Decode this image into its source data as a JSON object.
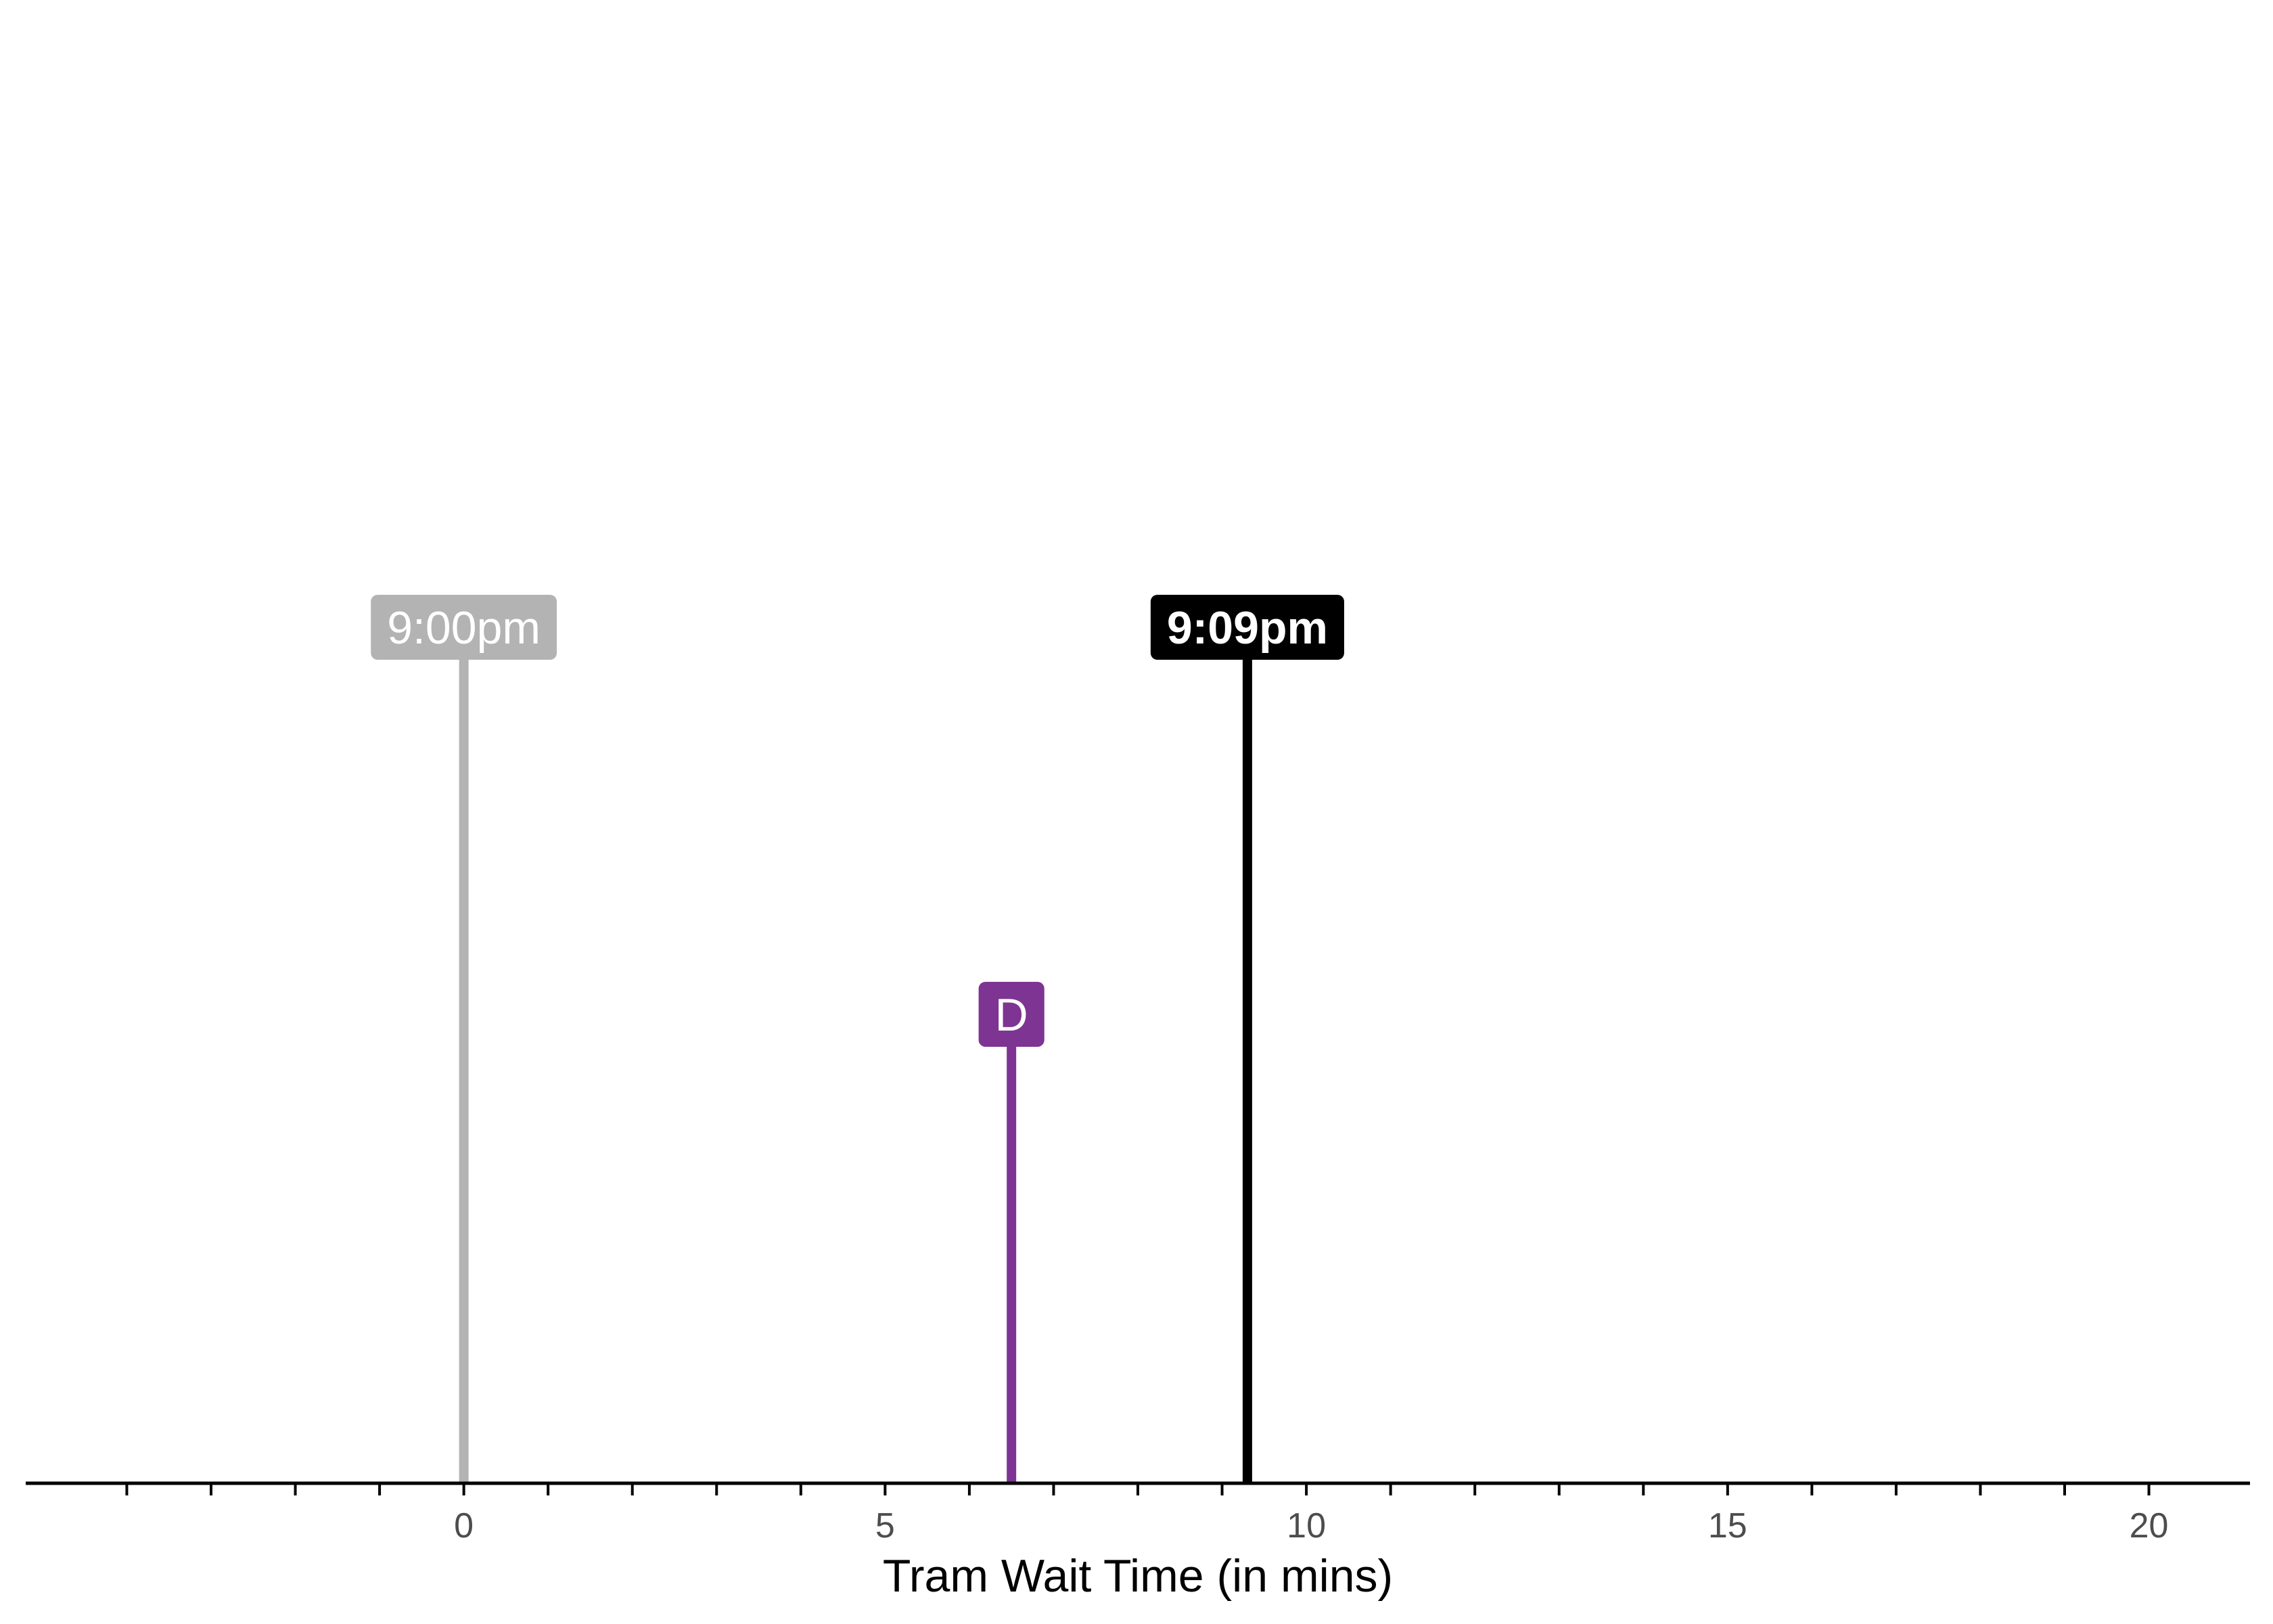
{
  "chart_data": {
    "type": "lollipop",
    "title": "",
    "xlabel": "Tram Wait Time (in mins)",
    "ylabel": "",
    "xlim": [
      -5.2,
      21.2
    ],
    "ylim": [
      0,
      1
    ],
    "grid": false,
    "x_major_ticks": [
      0,
      5,
      10,
      15,
      20
    ],
    "x_minor_ticks": [
      -4,
      -3,
      -2,
      -1,
      1,
      2,
      3,
      4,
      6,
      7,
      8,
      9,
      11,
      12,
      13,
      14,
      16,
      17,
      18,
      19
    ],
    "x_tick_labels": [
      "0",
      "5",
      "10",
      "15",
      "20"
    ],
    "markers": [
      {
        "label": "9:00pm",
        "x": 0,
        "height": 1.0,
        "color": "#b3b3b3",
        "bold": false
      },
      {
        "label": "D",
        "x": 6.5,
        "height": 0.53,
        "color": "#7e3492",
        "bold": false
      },
      {
        "label": "9:09pm",
        "x": 9.3,
        "height": 1.0,
        "color": "#000000",
        "bold": true
      }
    ]
  }
}
